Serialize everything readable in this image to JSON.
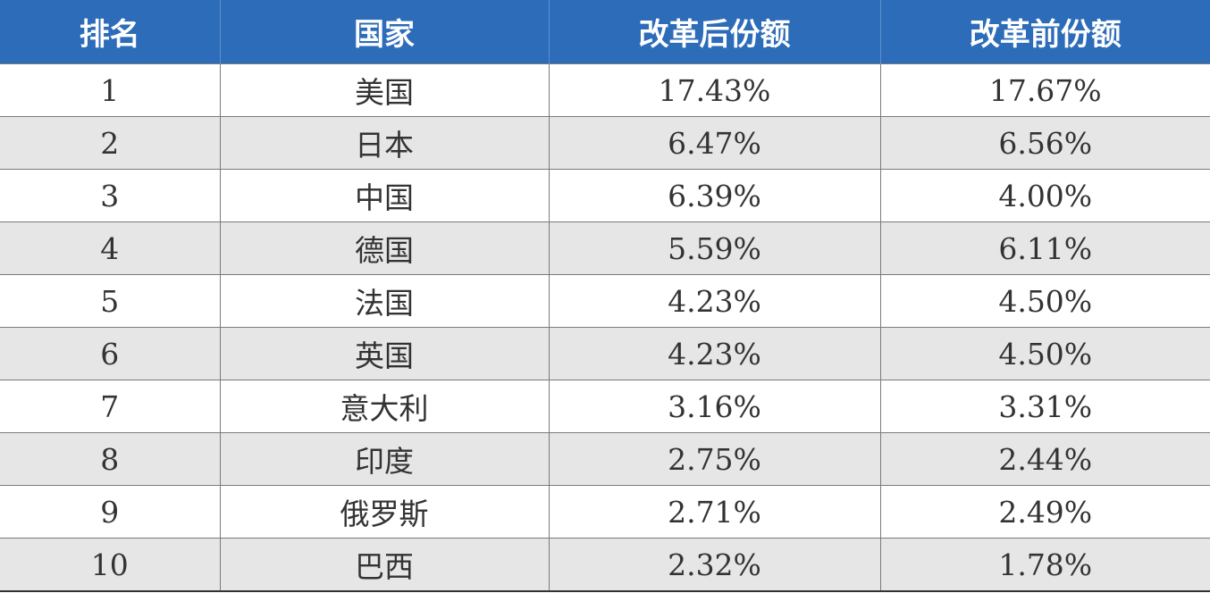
{
  "header": {
    "rank": "排名",
    "country": "国家",
    "after_reform_share": "改革后份额",
    "before_reform_share": "改革前份额"
  },
  "rows": [
    {
      "rank": "1",
      "country": "美国",
      "after": "17.43%",
      "before": "17.67%"
    },
    {
      "rank": "2",
      "country": "日本",
      "after": "6.47%",
      "before": "6.56%"
    },
    {
      "rank": "3",
      "country": "中国",
      "after": "6.39%",
      "before": "4.00%"
    },
    {
      "rank": "4",
      "country": "德国",
      "after": "5.59%",
      "before": "6.11%"
    },
    {
      "rank": "5",
      "country": "法国",
      "after": "4.23%",
      "before": "4.50%"
    },
    {
      "rank": "6",
      "country": "英国",
      "after": "4.23%",
      "before": "4.50%"
    },
    {
      "rank": "7",
      "country": "意大利",
      "after": "3.16%",
      "before": "3.31%"
    },
    {
      "rank": "8",
      "country": "印度",
      "after": "2.75%",
      "before": "2.44%"
    },
    {
      "rank": "9",
      "country": "俄罗斯",
      "after": "2.71%",
      "before": "2.49%"
    },
    {
      "rank": "10",
      "country": "巴西",
      "after": "2.32%",
      "before": "1.78%"
    }
  ],
  "colors": {
    "header_background": "#2d6cb8",
    "header_text": "#ffffff",
    "striped_row": "#e6e6e6"
  }
}
